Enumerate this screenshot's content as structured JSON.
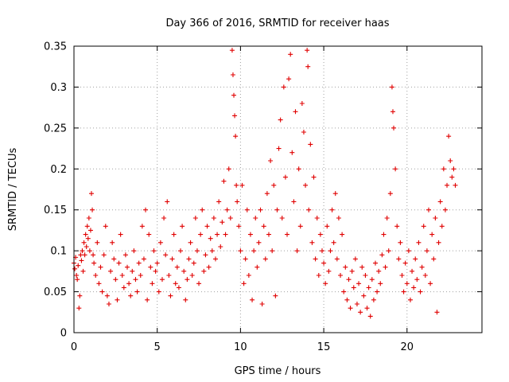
{
  "chart_data": {
    "type": "scatter",
    "title": "Day 366 of 2016, SRMTID for receiver haas",
    "xlabel": "GPS time / hours",
    "ylabel": "SRMTID / TECUs",
    "xlim": [
      0,
      24.5
    ],
    "ylim": [
      0,
      0.35
    ],
    "x_ticks": [
      0,
      5,
      10,
      15,
      20
    ],
    "x_tick_labels": [
      "0",
      "5",
      "10",
      "15",
      "20"
    ],
    "y_ticks": [
      0,
      0.05,
      0.1,
      0.15,
      0.2,
      0.25,
      0.3,
      0.35
    ],
    "y_tick_labels": [
      "0",
      "0.05",
      "0.1",
      "0.15",
      "0.2",
      "0.25",
      "0.3",
      "0.35"
    ],
    "grid": true,
    "marker": "+",
    "color": "#e00000",
    "series": [
      {
        "name": "SRMTID",
        "points": [
          [
            0.0,
            0.085
          ],
          [
            0.05,
            0.078
          ],
          [
            0.1,
            0.092
          ],
          [
            0.15,
            0.07
          ],
          [
            0.2,
            0.065
          ],
          [
            0.25,
            0.082
          ],
          [
            0.3,
            0.03
          ],
          [
            0.35,
            0.045
          ],
          [
            0.4,
            0.095
          ],
          [
            0.45,
            0.088
          ],
          [
            0.5,
            0.1
          ],
          [
            0.55,
            0.075
          ],
          [
            0.6,
            0.11
          ],
          [
            0.65,
            0.095
          ],
          [
            0.7,
            0.12
          ],
          [
            0.75,
            0.105
          ],
          [
            0.8,
            0.13
          ],
          [
            0.85,
            0.115
          ],
          [
            0.9,
            0.14
          ],
          [
            0.95,
            0.1
          ],
          [
            1.0,
            0.125
          ],
          [
            1.05,
            0.17
          ],
          [
            1.1,
            0.15
          ],
          [
            1.15,
            0.095
          ],
          [
            1.2,
            0.085
          ],
          [
            1.3,
            0.07
          ],
          [
            1.4,
            0.11
          ],
          [
            1.5,
            0.06
          ],
          [
            1.6,
            0.08
          ],
          [
            1.7,
            0.05
          ],
          [
            1.8,
            0.095
          ],
          [
            1.9,
            0.13
          ],
          [
            2.0,
            0.045
          ],
          [
            2.1,
            0.035
          ],
          [
            2.2,
            0.075
          ],
          [
            2.3,
            0.11
          ],
          [
            2.4,
            0.09
          ],
          [
            2.5,
            0.065
          ],
          [
            2.6,
            0.04
          ],
          [
            2.7,
            0.085
          ],
          [
            2.8,
            0.12
          ],
          [
            2.9,
            0.07
          ],
          [
            3.0,
            0.055
          ],
          [
            3.1,
            0.095
          ],
          [
            3.2,
            0.08
          ],
          [
            3.3,
            0.06
          ],
          [
            3.4,
            0.045
          ],
          [
            3.5,
            0.075
          ],
          [
            3.6,
            0.1
          ],
          [
            3.7,
            0.065
          ],
          [
            3.8,
            0.05
          ],
          [
            3.9,
            0.085
          ],
          [
            4.0,
            0.07
          ],
          [
            4.1,
            0.13
          ],
          [
            4.2,
            0.09
          ],
          [
            4.3,
            0.15
          ],
          [
            4.4,
            0.04
          ],
          [
            4.5,
            0.12
          ],
          [
            4.6,
            0.08
          ],
          [
            4.7,
            0.06
          ],
          [
            4.8,
            0.1
          ],
          [
            4.9,
            0.075
          ],
          [
            5.0,
            0.085
          ],
          [
            5.1,
            0.05
          ],
          [
            5.2,
            0.11
          ],
          [
            5.3,
            0.065
          ],
          [
            5.4,
            0.14
          ],
          [
            5.5,
            0.095
          ],
          [
            5.6,
            0.16
          ],
          [
            5.7,
            0.07
          ],
          [
            5.8,
            0.045
          ],
          [
            5.9,
            0.09
          ],
          [
            6.0,
            0.12
          ],
          [
            6.1,
            0.06
          ],
          [
            6.2,
            0.08
          ],
          [
            6.3,
            0.055
          ],
          [
            6.4,
            0.1
          ],
          [
            6.5,
            0.13
          ],
          [
            6.6,
            0.075
          ],
          [
            6.7,
            0.04
          ],
          [
            6.8,
            0.065
          ],
          [
            6.9,
            0.09
          ],
          [
            7.0,
            0.11
          ],
          [
            7.1,
            0.07
          ],
          [
            7.2,
            0.085
          ],
          [
            7.3,
            0.14
          ],
          [
            7.4,
            0.1
          ],
          [
            7.5,
            0.06
          ],
          [
            7.6,
            0.12
          ],
          [
            7.7,
            0.15
          ],
          [
            7.8,
            0.075
          ],
          [
            7.9,
            0.095
          ],
          [
            8.0,
            0.13
          ],
          [
            8.1,
            0.08
          ],
          [
            8.2,
            0.115
          ],
          [
            8.3,
            0.1
          ],
          [
            8.4,
            0.14
          ],
          [
            8.5,
            0.09
          ],
          [
            8.6,
            0.12
          ],
          [
            8.7,
            0.16
          ],
          [
            8.8,
            0.105
          ],
          [
            8.9,
            0.135
          ],
          [
            9.0,
            0.185
          ],
          [
            9.1,
            0.12
          ],
          [
            9.2,
            0.15
          ],
          [
            9.3,
            0.2
          ],
          [
            9.4,
            0.14
          ],
          [
            9.5,
            0.345
          ],
          [
            9.55,
            0.315
          ],
          [
            9.6,
            0.29
          ],
          [
            9.65,
            0.265
          ],
          [
            9.7,
            0.24
          ],
          [
            9.75,
            0.18
          ],
          [
            9.8,
            0.16
          ],
          [
            9.9,
            0.13
          ],
          [
            10.0,
            0.1
          ],
          [
            10.1,
            0.18
          ],
          [
            10.2,
            0.06
          ],
          [
            10.3,
            0.09
          ],
          [
            10.4,
            0.15
          ],
          [
            10.5,
            0.07
          ],
          [
            10.6,
            0.12
          ],
          [
            10.7,
            0.04
          ],
          [
            10.8,
            0.1
          ],
          [
            10.9,
            0.14
          ],
          [
            11.0,
            0.08
          ],
          [
            11.1,
            0.11
          ],
          [
            11.2,
            0.15
          ],
          [
            11.3,
            0.035
          ],
          [
            11.4,
            0.13
          ],
          [
            11.5,
            0.09
          ],
          [
            11.6,
            0.17
          ],
          [
            11.7,
            0.12
          ],
          [
            11.8,
            0.21
          ],
          [
            11.9,
            0.1
          ],
          [
            12.0,
            0.18
          ],
          [
            12.1,
            0.045
          ],
          [
            12.2,
            0.15
          ],
          [
            12.3,
            0.225
          ],
          [
            12.4,
            0.26
          ],
          [
            12.5,
            0.14
          ],
          [
            12.6,
            0.3
          ],
          [
            12.7,
            0.19
          ],
          [
            12.8,
            0.12
          ],
          [
            12.9,
            0.31
          ],
          [
            13.0,
            0.34
          ],
          [
            13.1,
            0.22
          ],
          [
            13.2,
            0.16
          ],
          [
            13.3,
            0.27
          ],
          [
            13.4,
            0.1
          ],
          [
            13.5,
            0.2
          ],
          [
            13.6,
            0.13
          ],
          [
            13.7,
            0.28
          ],
          [
            13.8,
            0.245
          ],
          [
            13.9,
            0.18
          ],
          [
            14.0,
            0.345
          ],
          [
            14.05,
            0.325
          ],
          [
            14.1,
            0.15
          ],
          [
            14.2,
            0.23
          ],
          [
            14.3,
            0.11
          ],
          [
            14.4,
            0.19
          ],
          [
            14.5,
            0.09
          ],
          [
            14.6,
            0.14
          ],
          [
            14.7,
            0.07
          ],
          [
            14.8,
            0.12
          ],
          [
            14.9,
            0.1
          ],
          [
            15.0,
            0.085
          ],
          [
            15.1,
            0.06
          ],
          [
            15.2,
            0.13
          ],
          [
            15.3,
            0.075
          ],
          [
            15.4,
            0.1
          ],
          [
            15.5,
            0.15
          ],
          [
            15.6,
            0.11
          ],
          [
            15.7,
            0.17
          ],
          [
            15.8,
            0.09
          ],
          [
            15.9,
            0.14
          ],
          [
            16.0,
            0.07
          ],
          [
            16.1,
            0.12
          ],
          [
            16.2,
            0.05
          ],
          [
            16.3,
            0.08
          ],
          [
            16.4,
            0.04
          ],
          [
            16.5,
            0.065
          ],
          [
            16.6,
            0.03
          ],
          [
            16.7,
            0.075
          ],
          [
            16.8,
            0.055
          ],
          [
            16.9,
            0.09
          ],
          [
            17.0,
            0.035
          ],
          [
            17.1,
            0.06
          ],
          [
            17.2,
            0.025
          ],
          [
            17.3,
            0.08
          ],
          [
            17.4,
            0.045
          ],
          [
            17.5,
            0.07
          ],
          [
            17.6,
            0.03
          ],
          [
            17.7,
            0.055
          ],
          [
            17.8,
            0.02
          ],
          [
            17.9,
            0.065
          ],
          [
            18.0,
            0.04
          ],
          [
            18.1,
            0.085
          ],
          [
            18.2,
            0.05
          ],
          [
            18.3,
            0.075
          ],
          [
            18.4,
            0.06
          ],
          [
            18.5,
            0.095
          ],
          [
            18.6,
            0.12
          ],
          [
            18.7,
            0.08
          ],
          [
            18.8,
            0.14
          ],
          [
            18.9,
            0.1
          ],
          [
            19.0,
            0.17
          ],
          [
            19.1,
            0.3
          ],
          [
            19.15,
            0.27
          ],
          [
            19.2,
            0.25
          ],
          [
            19.3,
            0.2
          ],
          [
            19.4,
            0.13
          ],
          [
            19.5,
            0.09
          ],
          [
            19.6,
            0.11
          ],
          [
            19.7,
            0.07
          ],
          [
            19.8,
            0.05
          ],
          [
            19.9,
            0.085
          ],
          [
            20.0,
            0.06
          ],
          [
            20.1,
            0.1
          ],
          [
            20.2,
            0.04
          ],
          [
            20.3,
            0.075
          ],
          [
            20.4,
            0.055
          ],
          [
            20.5,
            0.09
          ],
          [
            20.6,
            0.065
          ],
          [
            20.7,
            0.11
          ],
          [
            20.8,
            0.05
          ],
          [
            20.9,
            0.08
          ],
          [
            21.0,
            0.13
          ],
          [
            21.1,
            0.07
          ],
          [
            21.2,
            0.1
          ],
          [
            21.3,
            0.15
          ],
          [
            21.4,
            0.06
          ],
          [
            21.5,
            0.12
          ],
          [
            21.6,
            0.09
          ],
          [
            21.7,
            0.14
          ],
          [
            21.8,
            0.025
          ],
          [
            21.9,
            0.11
          ],
          [
            22.0,
            0.16
          ],
          [
            22.1,
            0.13
          ],
          [
            22.2,
            0.2
          ],
          [
            22.3,
            0.15
          ],
          [
            22.4,
            0.18
          ],
          [
            22.5,
            0.24
          ],
          [
            22.6,
            0.21
          ],
          [
            22.7,
            0.19
          ],
          [
            22.8,
            0.2
          ],
          [
            22.9,
            0.18
          ]
        ]
      }
    ]
  }
}
